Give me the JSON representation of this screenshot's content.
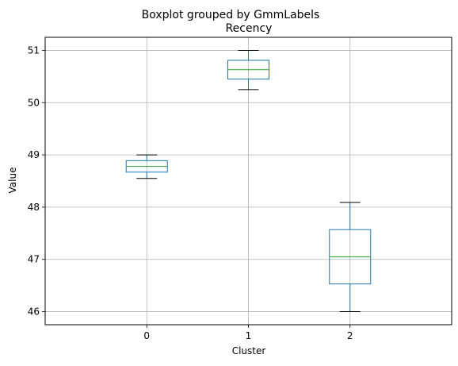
{
  "chart_data": {
    "type": "box",
    "suptitle": "Boxplot grouped by GmmLabels",
    "title": "Recency",
    "xlabel": "Cluster",
    "ylabel": "Value",
    "categories": [
      "0",
      "1",
      "2"
    ],
    "ylim": [
      45.75,
      51.25
    ],
    "yticks": [
      46,
      47,
      48,
      49,
      50,
      51
    ],
    "grid": true,
    "box_color": "#1f77b4",
    "median_color": "#2ca02c",
    "boxes": [
      {
        "category": "0",
        "whisker_low": 48.55,
        "q1": 48.67,
        "median": 48.78,
        "q3": 48.89,
        "whisker_high": 49.0
      },
      {
        "category": "1",
        "whisker_low": 50.25,
        "q1": 50.45,
        "median": 50.63,
        "q3": 50.81,
        "whisker_high": 51.0
      },
      {
        "category": "2",
        "whisker_low": 46.0,
        "q1": 46.53,
        "median": 47.05,
        "q3": 47.57,
        "whisker_high": 48.09
      }
    ]
  }
}
